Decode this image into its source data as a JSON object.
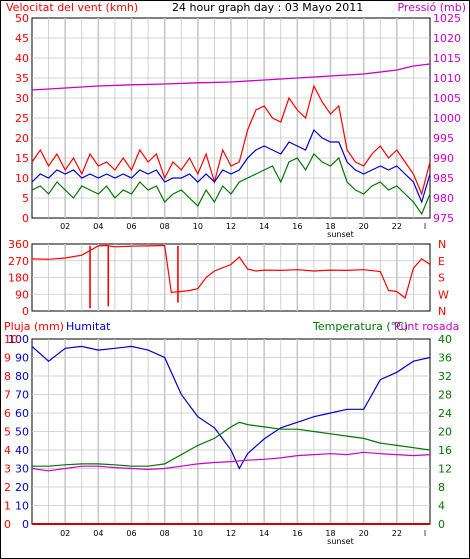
{
  "colors": {
    "red": "#ff0000",
    "darkred": "#cc0000",
    "green": "#007700",
    "blue": "#0000cc",
    "magenta": "#cc00cc",
    "grid": "#c8c8c8"
  },
  "x_ticks": [
    "02",
    "04",
    "06",
    "08",
    "10",
    "12",
    "14",
    "16",
    "18",
    "20",
    "22",
    "l"
  ],
  "sunset_label": "sunset",
  "chart_data": [
    {
      "type": "line",
      "title": "24 hour graph day : 03 Mayo 2011",
      "left_axis_label": "Velocitat del vent (kmh)",
      "right_axis_label": "Pressió (mb)",
      "left_ticks": [
        "0",
        "5",
        "10",
        "15",
        "20",
        "25",
        "30",
        "35",
        "40",
        "45",
        "50"
      ],
      "right_ticks": [
        "975",
        "980",
        "985",
        "990",
        "995",
        "1000",
        "1005",
        "1010",
        "1015",
        "1020",
        "1025"
      ],
      "ylim_left": [
        0,
        50
      ],
      "ylim_right": [
        975,
        1025
      ],
      "series": [
        {
          "name": "gust",
          "color": "#ff0000",
          "axis": "left",
          "x": [
            0,
            0.5,
            1,
            1.5,
            2,
            2.5,
            3,
            3.5,
            4,
            4.5,
            5,
            5.5,
            6,
            6.5,
            7,
            7.5,
            8,
            8.5,
            9,
            9.5,
            10,
            10.5,
            11,
            11.5,
            12,
            12.5,
            13,
            13.5,
            14,
            14.5,
            15,
            15.5,
            16,
            16.5,
            17,
            17.5,
            18,
            18.5,
            19,
            19.5,
            20,
            20.5,
            21,
            21.5,
            22,
            22.5,
            23,
            23.5,
            24
          ],
          "values": [
            14,
            17,
            13,
            16,
            12,
            15,
            11,
            16,
            13,
            14,
            12,
            15,
            12,
            17,
            14,
            16,
            10,
            14,
            12,
            15,
            11,
            16,
            9,
            17,
            13,
            14,
            22,
            27,
            28,
            25,
            24,
            30,
            27,
            25,
            33,
            29,
            26,
            28,
            17,
            14,
            13,
            16,
            18,
            15,
            17,
            14,
            11,
            6,
            14
          ]
        },
        {
          "name": "average",
          "color": "#0000cc",
          "axis": "left",
          "x": [
            0,
            0.5,
            1,
            1.5,
            2,
            2.5,
            3,
            3.5,
            4,
            4.5,
            5,
            5.5,
            6,
            6.5,
            7,
            7.5,
            8,
            8.5,
            9,
            9.5,
            10,
            10.5,
            11,
            11.5,
            12,
            12.5,
            13,
            13.5,
            14,
            14.5,
            15,
            15.5,
            16,
            16.5,
            17,
            17.5,
            18,
            18.5,
            19,
            19.5,
            20,
            20.5,
            21,
            21.5,
            22,
            22.5,
            23,
            23.5,
            24
          ],
          "values": [
            9,
            11,
            10,
            12,
            11,
            12,
            10,
            11,
            10,
            11,
            10,
            11,
            10,
            12,
            11,
            12,
            9,
            10,
            10,
            11,
            9,
            11,
            9,
            12,
            11,
            12,
            15,
            17,
            18,
            17,
            16,
            19,
            18,
            17,
            22,
            20,
            19,
            19,
            14,
            12,
            11,
            12,
            13,
            12,
            13,
            11,
            9,
            4,
            11
          ]
        },
        {
          "name": "minimum",
          "color": "#007700",
          "axis": "left",
          "x": [
            0,
            0.5,
            1,
            1.5,
            2,
            2.5,
            3,
            3.5,
            4,
            4.5,
            5,
            5.5,
            6,
            6.5,
            7,
            7.5,
            8,
            8.5,
            9,
            9.5,
            10,
            10.5,
            11,
            11.5,
            12,
            12.5,
            13,
            13.5,
            14,
            14.5,
            15,
            15.5,
            16,
            16.5,
            17,
            17.5,
            18,
            18.5,
            19,
            19.5,
            20,
            20.5,
            21,
            21.5,
            22,
            22.5,
            23,
            23.5,
            24
          ],
          "values": [
            7,
            8,
            6,
            9,
            7,
            5,
            8,
            7,
            6,
            8,
            5,
            7,
            6,
            9,
            7,
            8,
            4,
            6,
            7,
            5,
            3,
            7,
            4,
            8,
            6,
            9,
            10,
            11,
            12,
            13,
            9,
            14,
            15,
            12,
            16,
            14,
            13,
            15,
            9,
            7,
            6,
            8,
            9,
            7,
            8,
            6,
            4,
            1,
            6
          ]
        },
        {
          "name": "pressure",
          "color": "#cc00cc",
          "axis": "right",
          "x": [
            0,
            2,
            4,
            6,
            8,
            10,
            12,
            14,
            16,
            18,
            20,
            22,
            23,
            24
          ],
          "values": [
            1007,
            1007.5,
            1008,
            1008.3,
            1008.5,
            1008.8,
            1009,
            1009.5,
            1010,
            1010.5,
            1011,
            1012,
            1013,
            1013.5
          ]
        }
      ]
    },
    {
      "type": "scatter",
      "title": "",
      "left_ticks": [
        "0",
        "90",
        "180",
        "270",
        "360"
      ],
      "right_ticks": [
        "N",
        "W",
        "S",
        "E",
        "N"
      ],
      "ylim": [
        0,
        360
      ],
      "series": [
        {
          "name": "wind direction",
          "color": "#ff0000",
          "x": [
            0,
            1,
            2,
            3,
            4,
            4.5,
            5,
            6,
            7,
            8,
            8.4,
            9,
            9.5,
            10,
            10.5,
            11,
            12,
            12.5,
            13,
            13.5,
            14,
            15,
            16,
            17,
            18,
            19,
            20,
            21,
            21.5,
            22,
            22.5,
            23,
            23.5,
            24
          ],
          "values": [
            280,
            278,
            285,
            300,
            350,
            352,
            345,
            348,
            350,
            352,
            100,
            105,
            110,
            120,
            180,
            215,
            250,
            290,
            225,
            215,
            220,
            218,
            222,
            215,
            220,
            218,
            222,
            212,
            110,
            105,
            70,
            230,
            280,
            250
          ]
        },
        {
          "name": "wind direction spikes",
          "color": "#ff0000",
          "x": [
            3.5,
            4.6,
            8.8
          ],
          "values": [
            15,
            25,
            45
          ]
        }
      ]
    },
    {
      "type": "line",
      "title": "",
      "legend": [
        "Pluja (mm)",
        "Humitat",
        "Temperatura (°C)",
        "Punt rosada"
      ],
      "rain_ticks": [
        "0",
        "1",
        "2",
        "3",
        "4",
        "5",
        "6",
        "7",
        "8",
        "9",
        "10"
      ],
      "humidity_ticks": [
        "0",
        "10",
        "20",
        "30",
        "40",
        "50",
        "60",
        "70",
        "80",
        "90",
        "100"
      ],
      "temp_ticks": [
        "0",
        "4",
        "8",
        "12",
        "16",
        "20",
        "24",
        "28",
        "32",
        "36",
        "40"
      ],
      "ylim_humidity": [
        0,
        100
      ],
      "ylim_temp": [
        0,
        40
      ],
      "series": [
        {
          "name": "Humitat",
          "color": "#0000cc",
          "axis": "humidity",
          "x": [
            0,
            1,
            2,
            3,
            4,
            5,
            6,
            7,
            8,
            9,
            10,
            11,
            12,
            12.5,
            13,
            14,
            15,
            16,
            17,
            18,
            19,
            20,
            21,
            22,
            23,
            24
          ],
          "values": [
            96,
            88,
            95,
            96,
            94,
            95,
            96,
            94,
            90,
            70,
            58,
            52,
            40,
            30,
            38,
            46,
            52,
            55,
            58,
            60,
            62,
            62,
            78,
            82,
            88,
            90
          ]
        },
        {
          "name": "Temperatura",
          "color": "#007700",
          "axis": "temp",
          "x": [
            0,
            1,
            2,
            3,
            4,
            5,
            6,
            7,
            8,
            9,
            10,
            11,
            12,
            12.5,
            13,
            14,
            15,
            16,
            17,
            18,
            19,
            20,
            21,
            22,
            23,
            24
          ],
          "values": [
            12.5,
            12.5,
            12.8,
            13,
            13,
            12.8,
            12.5,
            12.5,
            13,
            15,
            17,
            18.5,
            21,
            22,
            21.5,
            21,
            20.5,
            20.5,
            20,
            19.5,
            19,
            18.5,
            17.5,
            17,
            16.5,
            16
          ]
        },
        {
          "name": "Punt rosada",
          "color": "#cc00cc",
          "axis": "temp",
          "x": [
            0,
            1,
            2,
            3,
            4,
            5,
            6,
            7,
            8,
            9,
            10,
            11,
            12,
            13,
            14,
            15,
            16,
            17,
            18,
            19,
            20,
            21,
            22,
            23,
            24
          ],
          "values": [
            12,
            11.5,
            12,
            12.5,
            12.5,
            12.2,
            12,
            11.8,
            12,
            12.5,
            13,
            13.3,
            13.5,
            13.8,
            14,
            14.3,
            14.8,
            15,
            15.2,
            15,
            15.5,
            15.2,
            15,
            14.8,
            15
          ]
        },
        {
          "name": "Pluja",
          "color": "#cc0000",
          "axis": "rain",
          "x": [
            0,
            24
          ],
          "values": [
            0,
            0
          ]
        }
      ]
    }
  ]
}
